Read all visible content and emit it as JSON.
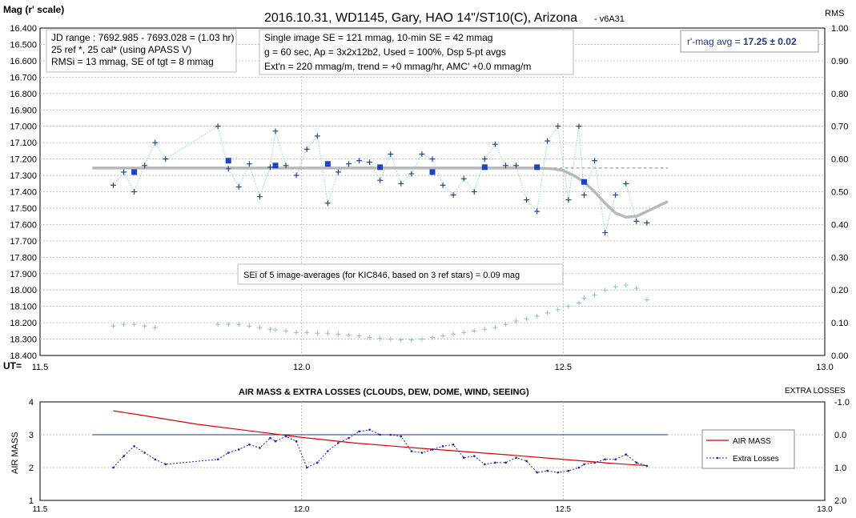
{
  "chart_data": [
    {
      "type": "scatter",
      "title": "2016.10.31,  WD1145, Gary, HAO  14\"/ST10(C), Arizona",
      "subtitle": "- v6A31",
      "ylabel": "Mag (r' scale)",
      "y2label": "RMS",
      "xlabel": "UT=",
      "ylim": [
        16.4,
        18.4
      ],
      "y2lim": [
        0.0,
        1.0
      ],
      "xlim": [
        11.5,
        13.0
      ],
      "yticks": [
        "16.400",
        "16.500",
        "16.600",
        "16.700",
        "16.800",
        "16.900",
        "17.000",
        "17.100",
        "17.200",
        "17.300",
        "17.400",
        "17.500",
        "17.600",
        "17.700",
        "17.800",
        "17.900",
        "18.000",
        "18.100",
        "18.200",
        "18.300",
        "18.400"
      ],
      "y2ticks": [
        "1.00",
        "0.90",
        "0.80",
        "0.70",
        "0.60",
        "0.50",
        "0.40",
        "0.30",
        "0.20",
        "0.10",
        "0.00"
      ],
      "xticks": [
        "11.5",
        "12.0",
        "12.5",
        "13.0"
      ],
      "grid": true,
      "info_box_1": [
        "JD range  : 7692.985 - 7693.028  = (1.03 hr)",
        "25 ref *, 25 cal* (using APASS V)",
        "RMSi = 13 mmag, SE of tgt = 8 mmag"
      ],
      "info_box_2": [
        "Single image SE = 121 mmag, 10-min SE = 42 mmag",
        "g = 60 sec, Ap = 3x2x12b2, Used = 100%, Dsp 5-pt avgs",
        "Ext'n = 220  mmag/m, trend = +0 mmag/hr, AMC' +0.0 mmag/m"
      ],
      "avg_label_prefix": "r'-mag avg = ",
      "avg_value": "17.25",
      "avg_err": " ± 0.02",
      "sei_note": "SEi of 5 image-averages (for KIC846, based on 3 ref stars) = 0.09 mag",
      "series": [
        {
          "role": "individual",
          "x": [
            11.64,
            11.66,
            11.68,
            11.7,
            11.72,
            11.74,
            11.84,
            11.86,
            11.88,
            11.9,
            11.92,
            11.94,
            11.95,
            11.97,
            11.99,
            12.01,
            12.03,
            12.05,
            12.07,
            12.09,
            12.11,
            12.13,
            12.15,
            12.17,
            12.19,
            12.21,
            12.23,
            12.25,
            12.27,
            12.29,
            12.31,
            12.33,
            12.35,
            12.37,
            12.39,
            12.41,
            12.43,
            12.45,
            12.47,
            12.49,
            12.51,
            12.53,
            12.54,
            12.56,
            12.58,
            12.6,
            12.62,
            12.64,
            12.66
          ],
          "y": [
            17.36,
            17.28,
            17.4,
            17.24,
            17.1,
            17.2,
            17.0,
            17.26,
            17.37,
            17.23,
            17.43,
            17.25,
            17.03,
            17.24,
            17.3,
            17.14,
            17.06,
            17.47,
            17.28,
            17.23,
            17.21,
            17.22,
            17.33,
            17.17,
            17.35,
            17.29,
            17.17,
            17.2,
            17.36,
            17.42,
            17.32,
            17.4,
            17.2,
            17.11,
            17.24,
            17.24,
            17.45,
            17.52,
            17.09,
            17.0,
            17.45,
            17.0,
            17.42,
            17.21,
            17.65,
            17.42,
            17.35,
            17.58,
            17.59
          ]
        },
        {
          "role": "5-pt-average",
          "x": [
            11.68,
            11.86,
            11.95,
            12.05,
            12.15,
            12.25,
            12.35,
            12.45,
            12.54
          ],
          "y": [
            17.28,
            17.21,
            17.24,
            17.23,
            17.25,
            17.28,
            17.25,
            17.25,
            17.34
          ]
        },
        {
          "role": "model",
          "x": [
            11.6,
            11.7,
            11.8,
            11.9,
            12.0,
            12.1,
            12.2,
            12.3,
            12.4,
            12.45,
            12.48,
            12.5,
            12.52,
            12.54,
            12.56,
            12.58,
            12.6,
            12.62,
            12.64,
            12.66,
            12.68,
            12.7
          ],
          "y": [
            17.255,
            17.255,
            17.255,
            17.255,
            17.255,
            17.255,
            17.255,
            17.255,
            17.255,
            17.255,
            17.26,
            17.27,
            17.3,
            17.34,
            17.4,
            17.47,
            17.53,
            17.555,
            17.55,
            17.52,
            17.49,
            17.46
          ]
        },
        {
          "role": "model-reference",
          "x": [
            12.45,
            12.7
          ],
          "y": [
            17.255,
            17.255
          ]
        },
        {
          "role": "rms",
          "x": [
            11.64,
            11.66,
            11.68,
            11.7,
            11.72,
            11.84,
            11.86,
            11.88,
            11.9,
            11.92,
            11.94,
            11.95,
            11.97,
            11.99,
            12.01,
            12.03,
            12.05,
            12.07,
            12.09,
            12.11,
            12.13,
            12.15,
            12.17,
            12.19,
            12.21,
            12.23,
            12.25,
            12.27,
            12.29,
            12.31,
            12.33,
            12.35,
            12.37,
            12.39,
            12.41,
            12.43,
            12.45,
            12.47,
            12.49,
            12.51,
            12.53,
            12.54,
            12.56,
            12.58,
            12.6,
            12.62,
            12.64,
            12.66
          ],
          "y2": [
            0.09,
            0.095,
            0.095,
            0.09,
            0.085,
            0.095,
            0.095,
            0.095,
            0.09,
            0.085,
            0.08,
            0.078,
            0.075,
            0.07,
            0.07,
            0.068,
            0.068,
            0.065,
            0.062,
            0.06,
            0.055,
            0.052,
            0.05,
            0.048,
            0.048,
            0.05,
            0.055,
            0.06,
            0.065,
            0.07,
            0.075,
            0.08,
            0.085,
            0.095,
            0.105,
            0.112,
            0.12,
            0.13,
            0.14,
            0.15,
            0.16,
            0.175,
            0.185,
            0.2,
            0.21,
            0.215,
            0.205,
            0.17
          ]
        }
      ]
    },
    {
      "type": "line",
      "title": "AIR MASS & EXTRA LOSSES (CLOUDS, DEW, DOME, WIND, SEEING)",
      "ylabel": "AIR MASS",
      "y2label": "EXTRA LOSSES",
      "ylim": [
        1,
        4
      ],
      "y2lim": [
        -1.0,
        2.0
      ],
      "xlim": [
        11.5,
        13.0
      ],
      "yticks": [
        "4",
        "3",
        "2",
        "1"
      ],
      "y2ticks": [
        "-1.0",
        "0.0",
        "1.0",
        "2.0"
      ],
      "xticks": [
        "11.5",
        "12.0",
        "12.5",
        "13.0"
      ],
      "grid": true,
      "reference_line": {
        "x": [
          11.6,
          12.7
        ],
        "y": 3.0
      },
      "legend": {
        "position": "right",
        "entries": [
          "AIR MASS",
          "Extra Losses"
        ]
      },
      "colors": {
        "air_mass": "#dd0000",
        "extra_losses": "#2222aa",
        "reference": "#1f3b7a"
      },
      "series": [
        {
          "name": "AIR MASS",
          "x": [
            11.64,
            11.7,
            11.8,
            11.9,
            12.0,
            12.1,
            12.2,
            12.3,
            12.4,
            12.5,
            12.6,
            12.66
          ],
          "y": [
            3.73,
            3.58,
            3.32,
            3.12,
            2.92,
            2.75,
            2.62,
            2.5,
            2.38,
            2.25,
            2.12,
            2.06
          ]
        },
        {
          "name": "Extra Losses",
          "x": [
            11.64,
            11.66,
            11.68,
            11.7,
            11.72,
            11.74,
            11.84,
            11.86,
            11.88,
            11.9,
            11.92,
            11.94,
            11.95,
            11.97,
            11.99,
            12.01,
            12.03,
            12.05,
            12.07,
            12.09,
            12.11,
            12.13,
            12.15,
            12.17,
            12.19,
            12.21,
            12.23,
            12.25,
            12.27,
            12.29,
            12.31,
            12.33,
            12.35,
            12.37,
            12.39,
            12.41,
            12.43,
            12.45,
            12.47,
            12.49,
            12.51,
            12.53,
            12.54,
            12.56,
            12.58,
            12.6,
            12.62,
            12.64,
            12.66
          ],
          "y2": [
            1.0,
            0.65,
            0.35,
            0.55,
            0.75,
            0.9,
            0.75,
            0.55,
            0.45,
            0.3,
            0.4,
            0.1,
            0.2,
            0.05,
            0.2,
            1.0,
            0.85,
            0.5,
            0.25,
            0.1,
            -0.1,
            -0.15,
            0.0,
            0.0,
            0.05,
            0.5,
            0.55,
            0.45,
            0.35,
            0.3,
            0.7,
            0.65,
            0.9,
            0.85,
            0.85,
            0.7,
            0.8,
            1.15,
            1.1,
            1.15,
            1.1,
            1.0,
            0.9,
            0.85,
            0.75,
            0.75,
            0.6,
            0.85,
            0.95
          ]
        }
      ]
    }
  ]
}
